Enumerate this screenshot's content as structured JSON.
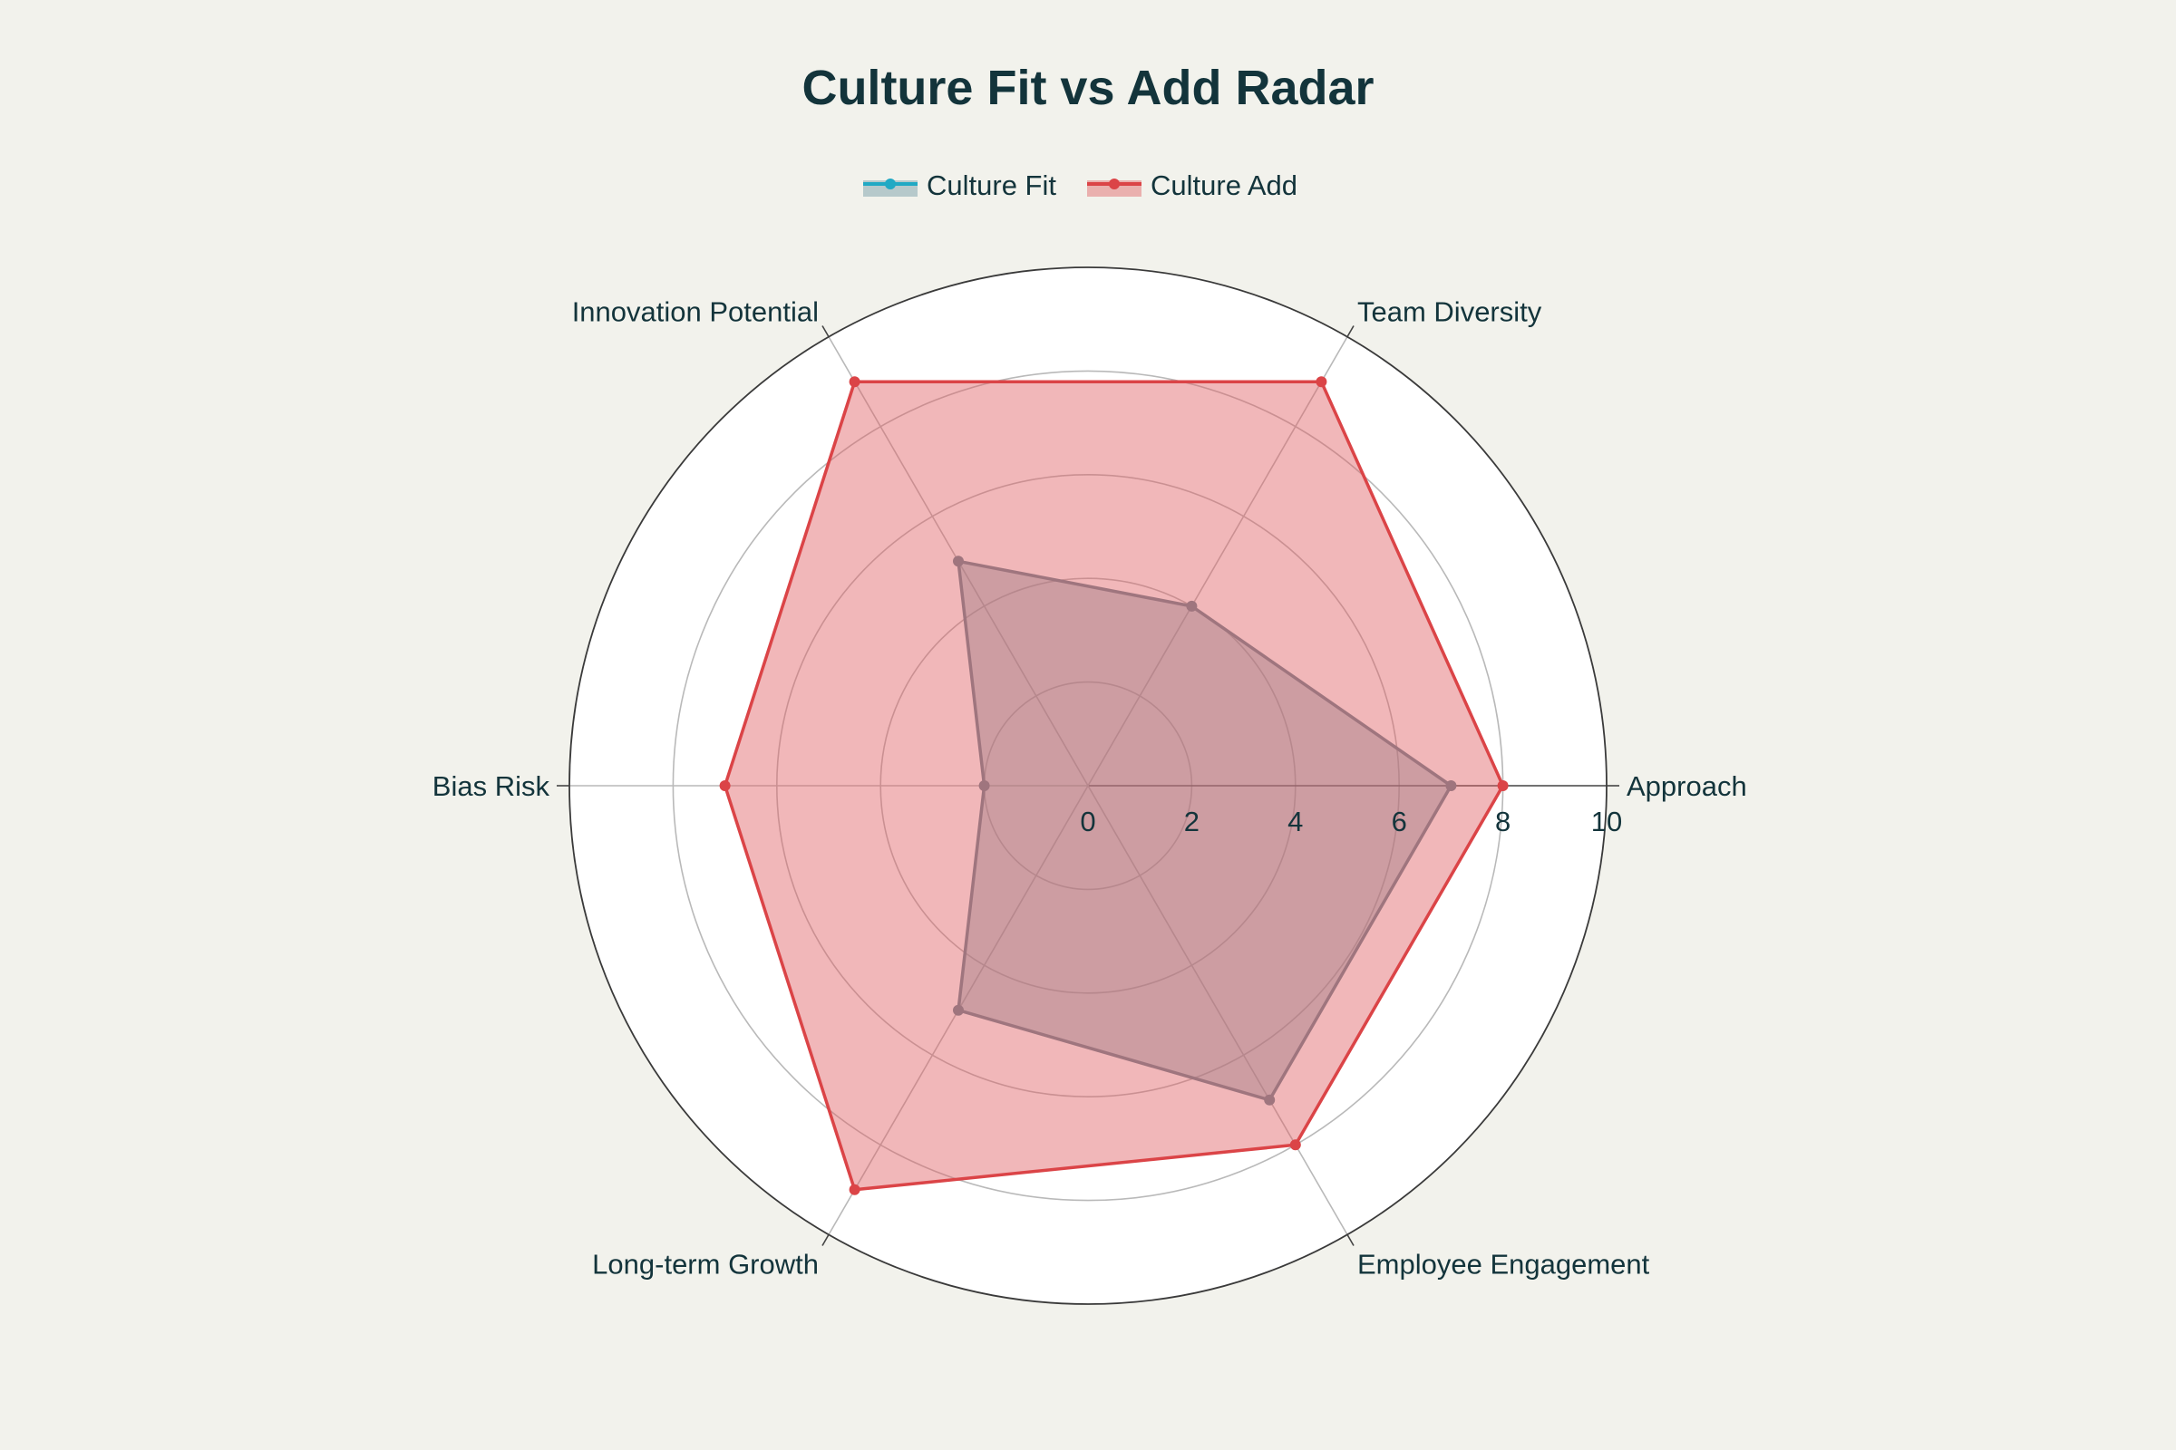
{
  "chart_data": {
    "type": "radar",
    "title": "Culture Fit vs Add Radar",
    "axes": [
      "Approach",
      "Team Diversity",
      "Innovation Potential",
      "Bias Risk",
      "Long-term Growth",
      "Employee Engagement"
    ],
    "rlim": [
      0,
      10
    ],
    "r_ticks": [
      "0",
      "2",
      "4",
      "6",
      "8",
      "10"
    ],
    "legend_position": "top-center",
    "series": [
      {
        "name": "Culture Fit",
        "values": [
          7,
          4,
          5,
          2,
          5,
          7
        ],
        "line_color": "#6b8794",
        "marker_color": "#6b8794",
        "legend_color": "#21a9c4",
        "fill_color": "rgba(108,150,165,0.45)"
      },
      {
        "name": "Culture Add",
        "values": [
          8,
          9,
          9,
          7,
          9,
          8
        ],
        "line_color": "#db4447",
        "marker_color": "#db4447",
        "legend_color": "#db4447",
        "fill_color": "rgba(224,95,100,0.45)"
      }
    ],
    "colors": {
      "background": "#f2f2ec",
      "plot_background": "#ffffff",
      "text": "#13343b",
      "grid": "#b9b9b9",
      "outer_ring": "#3a3a3a"
    }
  }
}
